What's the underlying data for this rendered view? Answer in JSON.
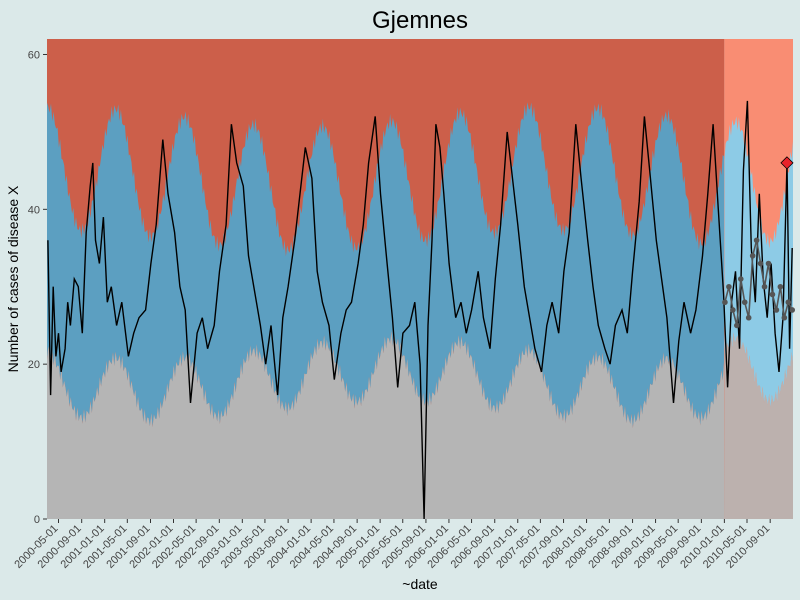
{
  "chart_data": {
    "type": "line",
    "title": "Gjemnes",
    "xlabel": "~date",
    "ylabel": "Number of cases of disease X",
    "ylim": [
      0,
      62
    ],
    "y_ticks": [
      0,
      20,
      40,
      60
    ],
    "x_tick_labels": [
      "2000-05-01",
      "2000-09-01",
      "2001-01-01",
      "2001-05-01",
      "2001-09-01",
      "2002-01-01",
      "2002-05-01",
      "2002-09-01",
      "2003-01-01",
      "2003-05-01",
      "2003-09-01",
      "2004-01-01",
      "2004-05-01",
      "2004-09-01",
      "2005-01-01",
      "2005-05-01",
      "2005-09-01",
      "2006-01-01",
      "2006-05-01",
      "2006-09-01",
      "2007-01-01",
      "2007-05-01",
      "2007-09-01",
      "2008-01-01",
      "2008-05-01",
      "2008-09-01",
      "2009-01-01",
      "2009-05-01",
      "2009-09-01",
      "2010-01-01",
      "2010-05-01",
      "2010-09-01"
    ],
    "x_range": [
      "2000-03-01",
      "2010-12-31"
    ],
    "forecast_start": "2010-01-01",
    "grid": false,
    "legend": "none",
    "colors": {
      "panel_background": "#dbe9e9",
      "zone_high": "#cc5f4a",
      "zone_high_forecast": "#f98d73",
      "zone_normal": "#5c9fc1",
      "zone_normal_forecast": "#8dcbe6",
      "zone_low": "#b5b5b5",
      "observed_line": "#000000",
      "forecast_points": "#555555",
      "alert_marker": "#e8232a"
    },
    "bands": {
      "lower_baseline": 18,
      "lower_seasonal_amplitude": 4,
      "upper_baseline": 44,
      "upper_seasonal_amplitude": 8,
      "peak_month": 2
    },
    "series": [
      {
        "values_description": "weekly counts 2000-03 to 2010-12",
        "points": [
          [
            "2000-03-06",
            36
          ],
          [
            "2000-03-20",
            16
          ],
          [
            "2000-04-03",
            30
          ],
          [
            "2000-04-17",
            21
          ],
          [
            "2000-05-01",
            24
          ],
          [
            "2000-05-15",
            19
          ],
          [
            "2000-06-05",
            22
          ],
          [
            "2000-06-19",
            28
          ],
          [
            "2000-07-03",
            25
          ],
          [
            "2000-07-24",
            31
          ],
          [
            "2000-08-14",
            30
          ],
          [
            "2000-09-04",
            24
          ],
          [
            "2000-09-25",
            37
          ],
          [
            "2000-10-16",
            43
          ],
          [
            "2000-10-30",
            46
          ],
          [
            "2000-11-13",
            36
          ],
          [
            "2000-12-04",
            33
          ],
          [
            "2000-12-25",
            39
          ],
          [
            "2001-01-15",
            28
          ],
          [
            "2001-02-05",
            30
          ],
          [
            "2001-03-05",
            25
          ],
          [
            "2001-04-02",
            28
          ],
          [
            "2001-05-07",
            21
          ],
          [
            "2001-06-04",
            24
          ],
          [
            "2001-07-02",
            26
          ],
          [
            "2001-08-06",
            27
          ],
          [
            "2001-09-03",
            33
          ],
          [
            "2001-10-01",
            38
          ],
          [
            "2001-11-05",
            49
          ],
          [
            "2001-12-03",
            42
          ],
          [
            "2002-01-07",
            37
          ],
          [
            "2002-02-04",
            30
          ],
          [
            "2002-03-04",
            27
          ],
          [
            "2002-04-01",
            15
          ],
          [
            "2002-05-06",
            24
          ],
          [
            "2002-06-03",
            26
          ],
          [
            "2002-07-01",
            22
          ],
          [
            "2002-08-05",
            25
          ],
          [
            "2002-09-02",
            32
          ],
          [
            "2002-10-07",
            38
          ],
          [
            "2002-11-04",
            51
          ],
          [
            "2002-12-02",
            46
          ],
          [
            "2003-01-06",
            43
          ],
          [
            "2003-02-03",
            34
          ],
          [
            "2003-03-03",
            30
          ],
          [
            "2003-04-07",
            25
          ],
          [
            "2003-05-05",
            20
          ],
          [
            "2003-06-02",
            25
          ],
          [
            "2003-07-07",
            16
          ],
          [
            "2003-08-04",
            26
          ],
          [
            "2003-09-01",
            30
          ],
          [
            "2003-10-06",
            36
          ],
          [
            "2003-11-03",
            42
          ],
          [
            "2003-12-01",
            48
          ],
          [
            "2004-01-05",
            44
          ],
          [
            "2004-02-02",
            32
          ],
          [
            "2004-03-01",
            28
          ],
          [
            "2004-04-05",
            25
          ],
          [
            "2004-05-03",
            18
          ],
          [
            "2004-06-07",
            24
          ],
          [
            "2004-07-05",
            27
          ],
          [
            "2004-08-02",
            28
          ],
          [
            "2004-09-06",
            33
          ],
          [
            "2004-10-04",
            38
          ],
          [
            "2004-11-01",
            46
          ],
          [
            "2004-12-06",
            52
          ],
          [
            "2005-01-03",
            42
          ],
          [
            "2005-02-07",
            33
          ],
          [
            "2005-03-07",
            26
          ],
          [
            "2005-04-04",
            17
          ],
          [
            "2005-05-02",
            24
          ],
          [
            "2005-06-06",
            25
          ],
          [
            "2005-07-04",
            28
          ],
          [
            "2005-08-01",
            20
          ],
          [
            "2005-08-22",
            0
          ],
          [
            "2005-09-12",
            25
          ],
          [
            "2005-10-03",
            36
          ],
          [
            "2005-10-24",
            51
          ],
          [
            "2005-11-14",
            48
          ],
          [
            "2005-12-05",
            42
          ],
          [
            "2006-01-02",
            33
          ],
          [
            "2006-02-06",
            26
          ],
          [
            "2006-03-06",
            28
          ],
          [
            "2006-04-03",
            24
          ],
          [
            "2006-05-01",
            27
          ],
          [
            "2006-06-05",
            32
          ],
          [
            "2006-07-03",
            26
          ],
          [
            "2006-08-07",
            22
          ],
          [
            "2006-09-04",
            31
          ],
          [
            "2006-10-02",
            38
          ],
          [
            "2006-11-06",
            50
          ],
          [
            "2006-12-04",
            44
          ],
          [
            "2007-01-01",
            38
          ],
          [
            "2007-02-05",
            30
          ],
          [
            "2007-03-05",
            26
          ],
          [
            "2007-04-02",
            22
          ],
          [
            "2007-05-07",
            19
          ],
          [
            "2007-06-04",
            25
          ],
          [
            "2007-07-02",
            28
          ],
          [
            "2007-08-06",
            24
          ],
          [
            "2007-09-03",
            32
          ],
          [
            "2007-10-01",
            37
          ],
          [
            "2007-11-05",
            51
          ],
          [
            "2007-12-03",
            44
          ],
          [
            "2008-01-07",
            36
          ],
          [
            "2008-02-04",
            30
          ],
          [
            "2008-03-03",
            25
          ],
          [
            "2008-04-07",
            22
          ],
          [
            "2008-05-05",
            20
          ],
          [
            "2008-06-02",
            25
          ],
          [
            "2008-07-07",
            27
          ],
          [
            "2008-08-04",
            24
          ],
          [
            "2008-09-01",
            32
          ],
          [
            "2008-10-06",
            41
          ],
          [
            "2008-11-03",
            52
          ],
          [
            "2008-12-01",
            45
          ],
          [
            "2009-01-05",
            36
          ],
          [
            "2009-02-02",
            31
          ],
          [
            "2009-03-02",
            26
          ],
          [
            "2009-04-06",
            15
          ],
          [
            "2009-05-04",
            23
          ],
          [
            "2009-06-01",
            28
          ],
          [
            "2009-07-06",
            24
          ],
          [
            "2009-08-03",
            27
          ],
          [
            "2009-09-07",
            34
          ],
          [
            "2009-10-05",
            42
          ],
          [
            "2009-11-02",
            51
          ],
          [
            "2009-11-30",
            40
          ],
          [
            "2009-12-28",
            29
          ],
          [
            "2010-01-18",
            17
          ],
          [
            "2010-02-08",
            28
          ],
          [
            "2010-03-01",
            32
          ],
          [
            "2010-03-22",
            22
          ],
          [
            "2010-04-12",
            45
          ],
          [
            "2010-05-03",
            54
          ],
          [
            "2010-05-24",
            35
          ],
          [
            "2010-06-14",
            28
          ],
          [
            "2010-07-05",
            42
          ],
          [
            "2010-07-26",
            31
          ],
          [
            "2010-08-16",
            26
          ],
          [
            "2010-09-06",
            33
          ],
          [
            "2010-09-27",
            24
          ],
          [
            "2010-10-18",
            19
          ],
          [
            "2010-11-08",
            26
          ],
          [
            "2010-11-29",
            46
          ],
          [
            "2010-12-13",
            22
          ],
          [
            "2010-12-27",
            35
          ]
        ]
      },
      {
        "name": "",
        "values_description": "forecast points 2010",
        "points": [
          [
            "2010-01-04",
            28
          ],
          [
            "2010-01-25",
            30
          ],
          [
            "2010-02-15",
            27
          ],
          [
            "2010-03-08",
            25
          ],
          [
            "2010-03-29",
            31
          ],
          [
            "2010-04-19",
            28
          ],
          [
            "2010-05-10",
            26
          ],
          [
            "2010-05-31",
            34
          ],
          [
            "2010-06-21",
            36
          ],
          [
            "2010-07-12",
            33
          ],
          [
            "2010-08-02",
            30
          ],
          [
            "2010-08-23",
            33
          ],
          [
            "2010-09-13",
            29
          ],
          [
            "2010-10-04",
            27
          ],
          [
            "2010-10-25",
            30
          ],
          [
            "2010-11-15",
            26
          ],
          [
            "2010-12-06",
            28
          ],
          [
            "2010-12-27",
            27
          ]
        ]
      }
    ],
    "alert": {
      "date": "2010-11-29",
      "value": 46
    }
  }
}
